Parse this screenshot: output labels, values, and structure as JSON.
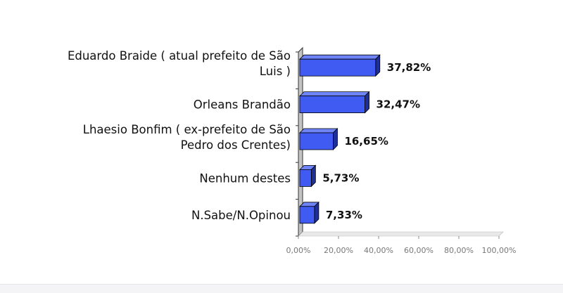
{
  "chart_data": {
    "type": "bar",
    "orientation": "horizontal",
    "style": "3d",
    "categories": [
      [
        "Eduardo Braide ( atual prefeito de São",
        "Luis )"
      ],
      [
        "Orleans Brandão"
      ],
      [
        "Lhaesio Bonfim ( ex-prefeito de São",
        "Pedro dos Crentes)"
      ],
      [
        "Nenhum destes"
      ],
      [
        "N.Sabe/N.Opinou"
      ]
    ],
    "values": [
      37.82,
      32.47,
      16.65,
      5.73,
      7.33
    ],
    "value_labels": [
      "37,82%",
      "32,47%",
      "16,65%",
      "5,73%",
      "7,33%"
    ],
    "xlim": [
      0,
      100
    ],
    "x_ticks": [
      "0,00%",
      "20,00%",
      "40,00%",
      "60,00%",
      "80,00%",
      "100,00%"
    ],
    "grid": false,
    "legend": "none",
    "colors": {
      "bar_front": "#3f5bf2",
      "bar_top": "#6e84f7",
      "bar_side": "#1f2f9a",
      "wall": "#c4c4c4",
      "axis": "#333333"
    }
  }
}
